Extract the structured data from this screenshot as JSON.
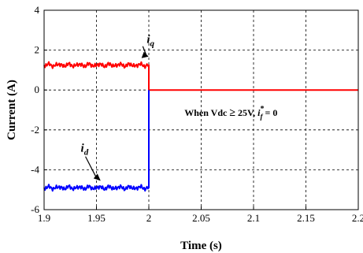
{
  "chart_data": {
    "type": "line",
    "xlabel": "Time (s)",
    "ylabel": "Current (A)",
    "xlim": [
      1.9,
      2.2
    ],
    "ylim": [
      -6,
      4
    ],
    "xticks": [
      "1.9",
      "1.95",
      "2",
      "2.05",
      "2.1",
      "2.15",
      "2.2"
    ],
    "yticks": [
      "-6",
      "-4",
      "-2",
      "0",
      "2",
      "4"
    ],
    "grid": true,
    "series": [
      {
        "name": "iq",
        "color": "#ff0000",
        "x": [
          1.9,
          2.0,
          2.0,
          2.2
        ],
        "y": [
          1.25,
          1.25,
          0,
          0
        ]
      },
      {
        "name": "id",
        "color": "#0000ff",
        "x": [
          1.9,
          2.0,
          2.0
        ],
        "y": [
          -4.9,
          -4.9,
          0
        ]
      }
    ],
    "annotations": {
      "iq": {
        "base": "i",
        "sub": "q",
        "x": 1.998,
        "y": 2.35
      },
      "id": {
        "base": "i",
        "sub": "d",
        "x": 1.935,
        "y": -3.1
      },
      "condition": {
        "prefix": "When Vdc ",
        "ge": "≥",
        "mid": " 25V, ",
        "var": "i",
        "sup": "*",
        "sub": "f",
        "suffix": " = 0",
        "x": 2.034,
        "y": -1.3
      }
    }
  }
}
